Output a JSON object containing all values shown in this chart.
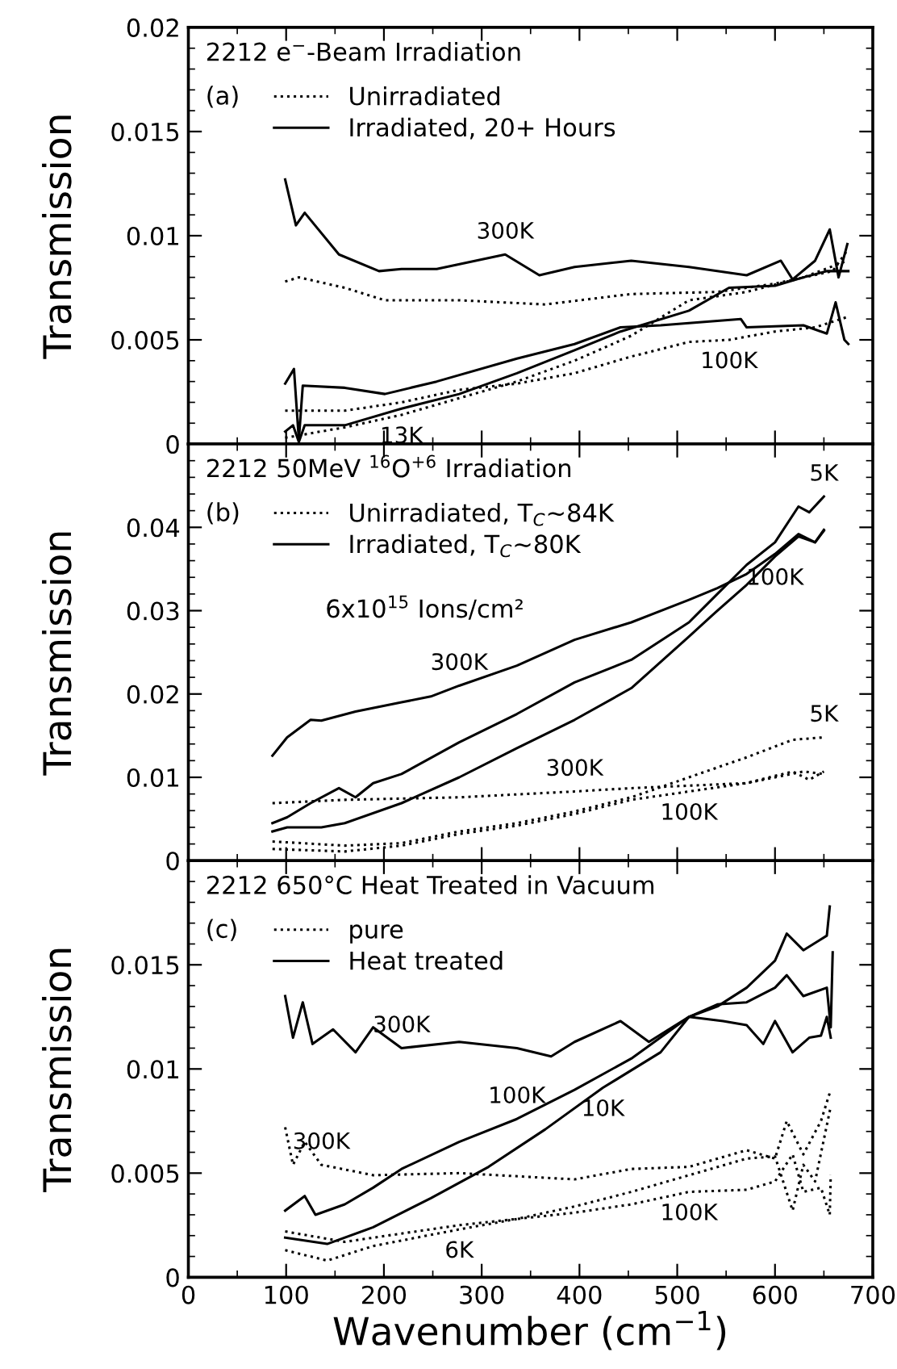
{
  "chart_data": [
    {
      "type": "line",
      "title": "2212 e$^{−}$-Beam Irradiation",
      "ylabel": "Transmission",
      "xlim": [
        0,
        700
      ],
      "xticks": [
        0,
        100,
        200,
        300,
        400,
        500,
        600,
        700
      ],
      "ylim": [
        0,
        0.02
      ],
      "yticks": [
        0,
        0.005,
        0.01,
        0.015,
        0.02
      ],
      "tick_labels": "y",
      "legend": "top left",
      "grid": false,
      "annotations": [
        "(a)",
        {
          "text": "300K",
          "x": 324,
          "y": 0.0091
        },
        {
          "text": "100K",
          "x": 553,
          "y": 0.005
        },
        {
          "text": "13K",
          "x": 218,
          "y": 0.0014
        }
      ],
      "series": [
        {
          "name": "Unirradiated",
          "color": "#000000",
          "line_style": "dotted",
          "x": [
            99,
            113,
            160,
            201,
            277,
            365,
            453,
            541,
            600,
            659,
            674
          ],
          "values": [
            0.0078,
            0.008,
            0.0075,
            0.0069,
            0.0069,
            0.0067,
            0.0072,
            0.0073,
            0.0077,
            0.0083,
            0.0093
          ]
        },
        {
          "name": "Irradiated, 20+ Hours",
          "color": "#000000",
          "line_style": "solid",
          "x": [
            99,
            110,
            119,
            154,
            195,
            218,
            254,
            324,
            359,
            395,
            453,
            512,
            571,
            606,
            618,
            641,
            656,
            665,
            674
          ],
          "values": [
            0.0127,
            0.0105,
            0.0111,
            0.0091,
            0.0083,
            0.0084,
            0.0084,
            0.0091,
            0.0081,
            0.0085,
            0.0088,
            0.0085,
            0.0081,
            0.0088,
            0.0079,
            0.0088,
            0.0103,
            0.008,
            0.0096
          ]
        },
        {
          "color": "#000000",
          "line_style": "solid",
          "x": [
            99,
            108,
            113,
            117,
            160,
            201,
            254,
            336,
            395,
            442,
            483,
            565,
            571,
            629,
            653,
            662,
            671,
            675
          ],
          "values": [
            0.0029,
            0.0036,
            0.0002,
            0.0028,
            0.0027,
            0.0024,
            0.003,
            0.0041,
            0.0048,
            0.0056,
            0.0057,
            0.006,
            0.0056,
            0.0057,
            0.0053,
            0.0068,
            0.005,
            0.0048
          ]
        },
        {
          "color": "#000000",
          "line_style": "solid",
          "x": [
            99,
            107,
            113,
            119,
            160,
            218,
            277,
            336,
            395,
            442,
            512,
            553,
            600,
            629,
            653,
            675
          ],
          "values": [
            0.0006,
            0.0009,
            0.0001,
            0.0009,
            0.0009,
            0.0017,
            0.0024,
            0.0034,
            0.0045,
            0.0054,
            0.0064,
            0.0075,
            0.0076,
            0.008,
            0.0083,
            0.0083
          ]
        },
        {
          "color": "#000000",
          "line_style": "dotted",
          "x": [
            99,
            160,
            218,
            277,
            336,
            395,
            453,
            512,
            553,
            600,
            641,
            674
          ],
          "values": [
            0.0016,
            0.0016,
            0.002,
            0.0026,
            0.0029,
            0.0034,
            0.0042,
            0.0049,
            0.005,
            0.0054,
            0.0056,
            0.0061
          ]
        },
        {
          "color": "#000000",
          "line_style": "dotted",
          "x": [
            99,
            160,
            218,
            277,
            336,
            395,
            453,
            512,
            571,
            629,
            674
          ],
          "values": [
            0.0003,
            0.0008,
            0.0014,
            0.0022,
            0.003,
            0.004,
            0.0052,
            0.0069,
            0.0073,
            0.008,
            0.0088
          ]
        }
      ]
    },
    {
      "type": "line",
      "title": "2212 50MeV $^{16}$O$^{+6}$ Irradiation",
      "ylabel": "Transmission",
      "xlim": [
        0,
        700
      ],
      "xticks": [
        0,
        100,
        200,
        300,
        400,
        500,
        600,
        700
      ],
      "ylim": [
        0,
        0.05
      ],
      "yticks": [
        0,
        0.01,
        0.02,
        0.03,
        0.04
      ],
      "tick_labels": "y",
      "legend": "top left",
      "grid": false,
      "annotations": [
        "(b)",
        "6x10$^{15}$ Ions/cm²",
        {
          "text": "5K",
          "x": 650,
          "y": 0.0437
        },
        {
          "text": "100K",
          "x": 600,
          "y": 0.0365
        },
        {
          "text": "300K",
          "x": 277,
          "y": 0.021
        },
        {
          "text": "5K",
          "x": 650,
          "y": 0.0148
        },
        {
          "text": "300K",
          "x": 395,
          "y": 0.0083
        },
        {
          "text": "100K",
          "x": 512,
          "y": 0.0083
        }
      ],
      "series": [
        {
          "name": "Unirradiated, T$_{C}$~84K",
          "color": "#000000",
          "line_style": "dotted",
          "x": [
            86,
            160,
            277,
            395,
            453,
            512,
            571,
            629,
            650
          ],
          "values": [
            0.0069,
            0.0073,
            0.0076,
            0.0083,
            0.0087,
            0.009,
            0.0093,
            0.0107,
            0.0104
          ]
        },
        {
          "name": "Irradiated, T$_{C}$~80K",
          "color": "#000000",
          "line_style": "solid",
          "x": [
            86,
            101,
            125,
            136,
            171,
            218,
            248,
            277,
            336,
            395,
            453,
            512,
            541,
            571,
            600,
            624,
            641,
            650
          ],
          "values": [
            0.0126,
            0.0148,
            0.0169,
            0.0168,
            0.0179,
            0.019,
            0.0197,
            0.021,
            0.0234,
            0.0265,
            0.0286,
            0.0313,
            0.0327,
            0.0344,
            0.0368,
            0.0392,
            0.0382,
            0.0396
          ]
        },
        {
          "color": "#000000",
          "line_style": "solid",
          "x": [
            86,
            101,
            125,
            154,
            171,
            189,
            218,
            277,
            336,
            395,
            453,
            512,
            541,
            571,
            600,
            624,
            635,
            650
          ],
          "values": [
            0.0045,
            0.0052,
            0.0069,
            0.0087,
            0.0076,
            0.0093,
            0.0104,
            0.0142,
            0.0176,
            0.0214,
            0.0241,
            0.0286,
            0.032,
            0.0355,
            0.0382,
            0.0425,
            0.0418,
            0.0437
          ]
        },
        {
          "color": "#000000",
          "line_style": "solid",
          "x": [
            86,
            101,
            136,
            160,
            218,
            277,
            336,
            395,
            453,
            512,
            541,
            571,
            600,
            624,
            641,
            650
          ],
          "values": [
            0.0035,
            0.004,
            0.004,
            0.0045,
            0.0069,
            0.01,
            0.0135,
            0.0169,
            0.0207,
            0.0269,
            0.03,
            0.0331,
            0.0365,
            0.0389,
            0.0382,
            0.0397
          ]
        },
        {
          "color": "#000000",
          "line_style": "dotted",
          "x": [
            86,
            160,
            218,
            277,
            336,
            395,
            453,
            512,
            571,
            618,
            650
          ],
          "values": [
            0.0023,
            0.0018,
            0.0021,
            0.0035,
            0.0045,
            0.0059,
            0.0076,
            0.01,
            0.0124,
            0.0145,
            0.0148
          ]
        },
        {
          "color": "#000000",
          "line_style": "dotted",
          "x": [
            86,
            160,
            218,
            277,
            336,
            395,
            453,
            512,
            571,
            618,
            635,
            650
          ],
          "values": [
            0.0014,
            0.0011,
            0.0018,
            0.0032,
            0.0042,
            0.0056,
            0.0073,
            0.0083,
            0.0093,
            0.0107,
            0.0097,
            0.0107
          ]
        }
      ]
    },
    {
      "type": "line",
      "title": "2212 650°C Heat Treated in Vacuum",
      "ylabel": "Transmission",
      "xlabel": "Wavenumber (cm$^{−1}$)",
      "xlim": [
        0,
        700
      ],
      "xticks": [
        0,
        100,
        200,
        300,
        400,
        500,
        600,
        700
      ],
      "ylim": [
        0,
        0.02
      ],
      "yticks": [
        0,
        0.005,
        0.01,
        0.015
      ],
      "legend": "top left",
      "grid": false,
      "annotations": [
        "(c)",
        {
          "text": "300K",
          "x": 218,
          "y": 0.011
        },
        {
          "text": "100K",
          "x": 336,
          "y": 0.0076
        },
        {
          "text": "10K",
          "x": 424,
          "y": 0.0091
        },
        {
          "text": "300K",
          "x": 136,
          "y": 0.0054
        },
        {
          "text": "100K",
          "x": 512,
          "y": 0.0041
        },
        {
          "text": "6K",
          "x": 277,
          "y": 0.0023
        }
      ],
      "series": [
        {
          "name": "pure",
          "color": "#000000",
          "line_style": "dotted",
          "x": [
            99,
            107,
            119,
            136,
            189,
            277,
            395,
            453,
            512,
            571,
            600,
            612,
            629,
            647,
            657
          ],
          "values": [
            0.0072,
            0.0054,
            0.0065,
            0.0054,
            0.0049,
            0.005,
            0.0047,
            0.0052,
            0.0053,
            0.0061,
            0.0057,
            0.0075,
            0.0059,
            0.0075,
            0.009
          ]
        },
        {
          "name": "Heat treated",
          "color": "#000000",
          "line_style": "solid",
          "x": [
            99,
            107,
            117,
            127,
            148,
            171,
            189,
            218,
            277,
            336,
            371,
            395,
            442,
            471,
            512,
            547,
            571,
            588,
            600,
            618,
            635,
            647,
            653,
            657
          ],
          "values": [
            0.0135,
            0.0115,
            0.0132,
            0.0112,
            0.0119,
            0.0108,
            0.012,
            0.011,
            0.0113,
            0.011,
            0.0106,
            0.0113,
            0.0123,
            0.0113,
            0.0125,
            0.0123,
            0.0121,
            0.0112,
            0.0123,
            0.0108,
            0.0115,
            0.0116,
            0.0125,
            0.0115
          ]
        },
        {
          "color": "#000000",
          "line_style": "solid",
          "x": [
            99,
            119,
            130,
            160,
            189,
            218,
            277,
            336,
            395,
            453,
            512,
            541,
            571,
            600,
            612,
            629,
            653,
            656
          ],
          "values": [
            0.0032,
            0.0039,
            0.003,
            0.0035,
            0.0043,
            0.0052,
            0.0065,
            0.0076,
            0.009,
            0.0105,
            0.0125,
            0.013,
            0.0139,
            0.0152,
            0.0165,
            0.0157,
            0.0164,
            0.0178
          ]
        },
        {
          "color": "#000000",
          "line_style": "solid",
          "x": [
            99,
            142,
            189,
            248,
            307,
            365,
            424,
            483,
            512,
            541,
            571,
            600,
            612,
            629,
            653,
            657,
            659
          ],
          "values": [
            0.0019,
            0.0016,
            0.0024,
            0.0038,
            0.0053,
            0.0071,
            0.0091,
            0.0108,
            0.0125,
            0.0131,
            0.0132,
            0.0139,
            0.0145,
            0.0135,
            0.0139,
            0.012,
            0.0156
          ]
        },
        {
          "color": "#000000",
          "line_style": "dotted",
          "x": [
            99,
            142,
            189,
            277,
            336,
            395,
            453,
            512,
            571,
            600,
            618,
            629,
            641,
            657
          ],
          "values": [
            0.0013,
            0.0008,
            0.0015,
            0.0023,
            0.0028,
            0.0034,
            0.0041,
            0.0049,
            0.0057,
            0.0058,
            0.0032,
            0.0054,
            0.0046,
            0.0082
          ]
        },
        {
          "color": "#000000",
          "line_style": "dotted",
          "x": [
            99,
            160,
            218,
            277,
            336,
            395,
            453,
            512,
            571,
            600,
            618,
            629,
            647,
            656,
            657
          ],
          "values": [
            0.0022,
            0.0017,
            0.0021,
            0.0025,
            0.0028,
            0.0031,
            0.0035,
            0.0041,
            0.0042,
            0.0046,
            0.0059,
            0.0041,
            0.0043,
            0.003,
            0.0049
          ]
        }
      ]
    }
  ]
}
